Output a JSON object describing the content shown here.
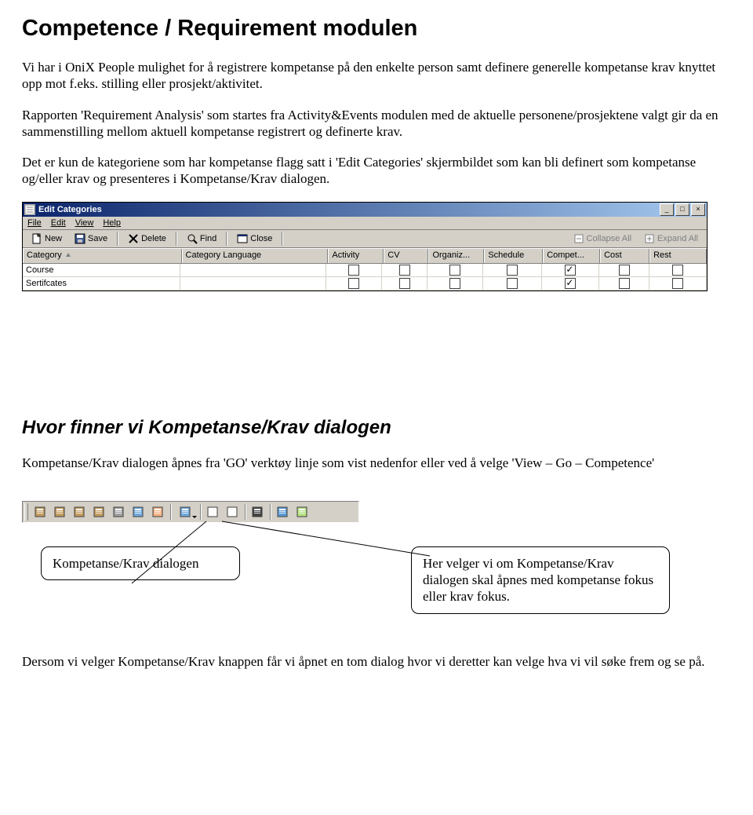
{
  "title_h1": "Competence / Requirement modulen",
  "para_1": "Vi har i OniX People mulighet for å registrere kompetanse på den enkelte person samt definere generelle kompetanse krav knyttet opp mot f.eks. stilling eller prosjekt/aktivitet.",
  "para_2": "Rapporten 'Requirement Analysis' som startes fra Activity&Events modulen med de aktuelle personene/prosjektene valgt gir da en sammenstilling mellom aktuell kompetanse registrert og definerte krav.",
  "para_3": "Det er kun de kategoriene som har kompetanse flagg satt i 'Edit Categories' skjermbildet som kan bli definert som kompetanse og/eller krav og presenteres i Kompetanse/Krav dialogen.",
  "edit_categories": {
    "window_title": "Edit Categories",
    "menubar": [
      "File",
      "Edit",
      "View",
      "Help"
    ],
    "toolbar": {
      "new": "New",
      "save": "Save",
      "delete": "Delete",
      "find": "Find",
      "close": "Close",
      "collapse": "Collapse All",
      "expand": "Expand All"
    },
    "columns": [
      "Category",
      "Category Language",
      "Activity",
      "CV",
      "Organiz...",
      "Schedule",
      "Compet...",
      "Cost",
      "Rest"
    ],
    "rows": [
      {
        "label": "Course",
        "checks": [
          false,
          false,
          false,
          false,
          true,
          false,
          false
        ]
      },
      {
        "label": "Sertifcates",
        "checks": [
          false,
          false,
          false,
          false,
          true,
          false,
          false
        ]
      }
    ]
  },
  "title_h2": "Hvor finner vi Kompetanse/Krav dialogen",
  "para_4": "Kompetanse/Krav dialogen åpnes fra 'GO' verktøy linje som vist nedenfor eller ved å velge 'View – Go – Competence'",
  "go_toolbar": {
    "buttons": [
      {
        "name": "persons",
        "fill": "#c29b5f"
      },
      {
        "name": "organizations",
        "fill": "#c29b5f"
      },
      {
        "name": "documents",
        "fill": "#c29b5f"
      },
      {
        "name": "activities",
        "fill": "#c29b5f"
      },
      {
        "name": "events",
        "fill": "#a0a0a0"
      },
      {
        "name": "schedule",
        "fill": "#6fa8dc"
      },
      {
        "name": "schedule2",
        "fill": "#f4b183"
      },
      {
        "name": "competence",
        "fill": "#6fa8dc",
        "has_dropdown": true,
        "separator_before": true
      },
      {
        "name": "spreadsheet",
        "fill": "#ffffff",
        "separator_before": true
      },
      {
        "name": "report",
        "fill": "#ffffff"
      },
      {
        "name": "person",
        "fill": "#444444",
        "separator_before": true
      },
      {
        "name": "tree",
        "fill": "#5b9bd5",
        "separator_before": true
      },
      {
        "name": "chat",
        "fill": "#b4e080"
      }
    ]
  },
  "callout_left": "Kompetanse/Krav dialogen",
  "callout_right": "Her velger vi om Kompetanse/Krav dialogen skal åpnes med kompetanse fokus eller krav fokus.",
  "para_5": "Dersom vi velger Kompetanse/Krav knappen får vi åpnet en tom dialog hvor vi deretter kan velge hva vi vil søke frem og se på."
}
